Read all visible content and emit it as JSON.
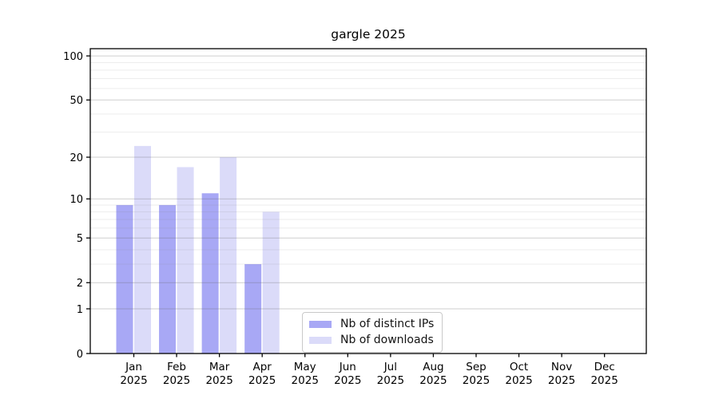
{
  "chart_data": {
    "type": "bar",
    "title": "gargle 2025",
    "categories": [
      "Jan",
      "Feb",
      "Mar",
      "Apr",
      "May",
      "Jun",
      "Jul",
      "Aug",
      "Sep",
      "Oct",
      "Nov",
      "Dec"
    ],
    "category_year": "2025",
    "series": [
      {
        "name": "Nb of distinct IPs",
        "color": "#a8a8f5",
        "values": [
          9,
          9,
          11,
          3,
          0,
          0,
          0,
          0,
          0,
          0,
          0,
          0
        ]
      },
      {
        "name": "Nb of downloads",
        "color": "#dbdbf9",
        "values": [
          24,
          17,
          20,
          8,
          0,
          0,
          0,
          0,
          0,
          0,
          0,
          0
        ]
      }
    ],
    "yscale": "log1p",
    "ylim": [
      0,
      112
    ],
    "y_major_ticks": [
      0,
      1,
      2,
      5,
      10,
      20,
      50,
      100
    ],
    "y_minor_gridlines": [
      3,
      4,
      6,
      7,
      8,
      9,
      30,
      40,
      60,
      70,
      80,
      90
    ],
    "grid": true,
    "legend_position": "bottom-center",
    "colors": {
      "axis": "#000000",
      "major_grid": "#d0d0d0",
      "minor_grid": "#ececec",
      "background": "#ffffff"
    }
  }
}
